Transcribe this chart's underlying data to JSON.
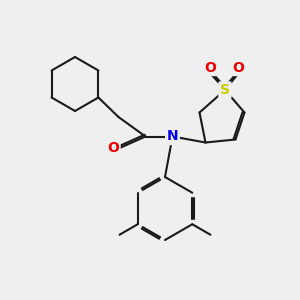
{
  "background_color": "#efefef",
  "bond_color": "#1a1a1a",
  "nitrogen_color": "#0000ee",
  "oxygen_color": "#ee0000",
  "sulfur_color": "#cccc00",
  "lw": 1.5,
  "figsize": [
    3.0,
    3.0
  ],
  "dpi": 100,
  "xlim": [
    0,
    10
  ],
  "ylim": [
    0,
    10
  ]
}
